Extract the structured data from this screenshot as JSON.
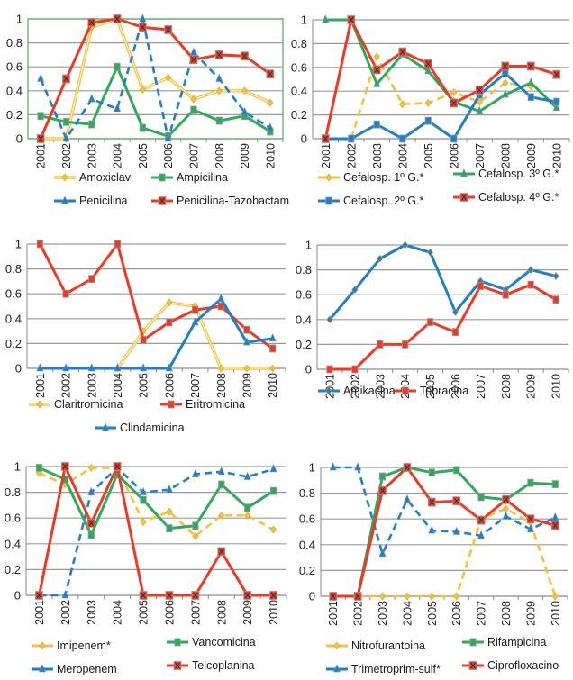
{
  "chart_data": [
    {
      "type": "line",
      "title": "",
      "xlabel": "",
      "ylabel": "",
      "x": [
        "2001",
        "2002",
        "2003",
        "2004",
        "2005",
        "2006",
        "2007",
        "2008",
        "2009",
        "2010"
      ],
      "yticks": [
        "0",
        "0.2",
        "0.4",
        "0.6",
        "0.8",
        "1"
      ],
      "ylim": [
        0,
        1
      ],
      "grid": true,
      "frame_color": "#4caf50",
      "note": "lines are drawn offset (between categories) from markers",
      "series": [
        {
          "name": "Amoxiclav",
          "color": "#f7c23a",
          "style": "double",
          "marker": "diamond",
          "values": [
            0,
            0,
            0.93,
            1.0,
            0.41,
            0.51,
            0.33,
            0.4,
            0.4,
            0.3
          ],
          "line_values": [
            0,
            0,
            0.93,
            1.0,
            0.41,
            0.51,
            0.33,
            0.4,
            0.4,
            0.3
          ]
        },
        {
          "name": "Ampicilina",
          "color": "#2eaa5a",
          "style": "solid",
          "marker": "square",
          "values": [
            0.19,
            0.14,
            0.12,
            0.6,
            0.09,
            0.02,
            0.24,
            0.15,
            0.19,
            0.06
          ]
        },
        {
          "name": "Penicilina",
          "color": "#1f7fc8",
          "style": "dashed",
          "marker": "triangle",
          "values": [
            0.5,
            0,
            0.33,
            0.25,
            1.0,
            0,
            0.72,
            0.5,
            0.22,
            0.09
          ]
        },
        {
          "name": "Penicilina-Tazobactam",
          "color": "#ee3a24",
          "style": "solid",
          "marker": "x-square",
          "values": [
            0,
            0.5,
            0.97,
            1.0,
            0.93,
            0.91,
            0.66,
            0.7,
            0.69,
            0.54
          ]
        }
      ]
    },
    {
      "type": "line",
      "title": "",
      "x": [
        "2001",
        "2002",
        "2003",
        "2004",
        "2005",
        "2006",
        "2007",
        "2008",
        "2009",
        "2010"
      ],
      "yticks": [
        "0",
        "0.2",
        "0.4",
        "0.6",
        "0.8",
        "1"
      ],
      "ylim": [
        0,
        1
      ],
      "grid": true,
      "series": [
        {
          "name": "Cefalosp. 1º G.*",
          "color": "#f7c23a",
          "style": "dashed",
          "marker": "diamond",
          "values": [
            null,
            0,
            0.69,
            0.29,
            0.3,
            0.39,
            0.31,
            0.47,
            0.44,
            null
          ]
        },
        {
          "name": "Cefalosp. 3º G.*",
          "color": "#2eaa5a",
          "style": "solid",
          "marker": "triangle",
          "values": [
            1.0,
            1.0,
            0.46,
            0.71,
            0.57,
            0.31,
            0.23,
            0.37,
            0.47,
            0.26
          ]
        },
        {
          "name": "Cefalosp. 2º G.*",
          "color": "#1f7fc8",
          "style": "solid",
          "marker": "square",
          "values": [
            0,
            0,
            0.12,
            0,
            0.15,
            0,
            0.37,
            0.55,
            0.35,
            0.31
          ]
        },
        {
          "name": "Cefalosp. 4º G.*",
          "color": "#ee3a24",
          "style": "solid",
          "marker": "x-square",
          "values": [
            0,
            1.0,
            0.58,
            0.73,
            0.63,
            0.3,
            0.41,
            0.61,
            0.61,
            0.54
          ]
        }
      ]
    },
    {
      "type": "line",
      "title": "",
      "x": [
        "2001",
        "2002",
        "2003",
        "2004",
        "2005",
        "2006",
        "2007",
        "2008",
        "2009",
        "2010"
      ],
      "yticks": [
        "0",
        "0.2",
        "0.4",
        "0.6",
        "0.8",
        "1"
      ],
      "ylim": [
        0,
        1
      ],
      "grid": true,
      "series": [
        {
          "name": "Claritromicina",
          "color": "#f7c23a",
          "style": "double",
          "marker": "diamond",
          "values": [
            null,
            null,
            null,
            0,
            0.3,
            0.53,
            0.5,
            0,
            0,
            0
          ]
        },
        {
          "name": "Eritromicina",
          "color": "#ee3a24",
          "style": "solid",
          "marker": "square",
          "values": [
            1.0,
            0.6,
            0.72,
            1.0,
            0.23,
            0.37,
            0.47,
            0.5,
            0.31,
            0.16
          ]
        },
        {
          "name": "Clindamicina",
          "color": "#1f7fc8",
          "style": "solid",
          "marker": "triangle",
          "values": [
            0,
            0,
            0,
            0,
            0,
            0,
            0.37,
            0.56,
            0.21,
            0.24
          ]
        }
      ]
    },
    {
      "type": "line",
      "title": "",
      "x": [
        "2001",
        "2002",
        "2003",
        "2004",
        "2005",
        "2006",
        "2007",
        "2008",
        "2009",
        "2010"
      ],
      "yticks": [
        "0",
        "0.2",
        "0.4",
        "0.6",
        "0.8",
        "1"
      ],
      "ylim": [
        0,
        1
      ],
      "grid": true,
      "series": [
        {
          "name": "Amikacina",
          "color": "#1f7fc8",
          "style": "solid",
          "marker": "diamond",
          "values": [
            0.4,
            0.64,
            0.89,
            1.0,
            0.94,
            0.46,
            0.71,
            0.64,
            0.8,
            0.75
          ]
        },
        {
          "name": "Tobracina",
          "color": "#ee3a24",
          "style": "solid",
          "marker": "square",
          "values": [
            0,
            0,
            0.2,
            0.2,
            0.38,
            0.3,
            0.67,
            0.6,
            0.68,
            0.56
          ]
        }
      ]
    },
    {
      "type": "line",
      "title": "",
      "x": [
        "2001",
        "2002",
        "2003",
        "2004",
        "2005",
        "2006",
        "2007",
        "2008",
        "2009",
        "2010"
      ],
      "yticks": [
        "0",
        "0.2",
        "0.4",
        "0.6",
        "0.8",
        "1"
      ],
      "ylim": [
        0,
        1
      ],
      "grid": true,
      "series": [
        {
          "name": "Imipenem*",
          "color": "#f7c23a",
          "style": "dashed",
          "marker": "diamond",
          "values": [
            0.95,
            0.86,
            0.99,
            0.99,
            0.57,
            0.65,
            0.46,
            0.62,
            0.62,
            0.51
          ]
        },
        {
          "name": "Vancomicina",
          "color": "#2eaa5a",
          "style": "solid",
          "marker": "square",
          "values": [
            0.99,
            0.9,
            0.47,
            0.94,
            0.74,
            0.52,
            0.54,
            0.86,
            0.68,
            0.81
          ]
        },
        {
          "name": "Meropenem",
          "color": "#1f7fc8",
          "style": "dashed",
          "marker": "triangle",
          "values": [
            0,
            0,
            0.8,
            0.99,
            0.8,
            0.82,
            0.94,
            0.96,
            0.92,
            0.98
          ]
        },
        {
          "name": "Telcoplanina",
          "color": "#ee3a24",
          "style": "solid",
          "marker": "x-square",
          "values": [
            0,
            1.0,
            0.56,
            1.0,
            0,
            0,
            0,
            0.34,
            0,
            0
          ]
        }
      ]
    },
    {
      "type": "line",
      "title": "",
      "x": [
        "2001",
        "2002",
        "2003",
        "2004",
        "2005",
        "2006",
        "2007",
        "2008",
        "2009",
        "2010"
      ],
      "yticks": [
        "0",
        "0.2",
        "0.4",
        "0.6",
        "0.8",
        "1"
      ],
      "ylim": [
        0,
        1
      ],
      "grid": true,
      "series": [
        {
          "name": "Nitrofurantoina",
          "color": "#f7c23a",
          "style": "dashed",
          "marker": "diamond",
          "values": [
            null,
            0,
            0,
            0,
            0,
            0,
            0.6,
            0.68,
            0.57,
            0
          ]
        },
        {
          "name": "Rifampicina",
          "color": "#2eaa5a",
          "style": "solid",
          "marker": "square",
          "values": [
            null,
            0,
            0.93,
            1.0,
            0.96,
            0.98,
            0.77,
            0.75,
            0.88,
            0.87
          ]
        },
        {
          "name": "Trimetroprim-sulf*",
          "color": "#1f7fc8",
          "style": "dashed",
          "marker": "triangle",
          "values": [
            1.0,
            1.0,
            0.33,
            0.75,
            0.51,
            0.5,
            0.47,
            0.62,
            0.52,
            0.61
          ]
        },
        {
          "name": "Ciprofloxacino",
          "color": "#ee3a24",
          "style": "solid",
          "marker": "x-square",
          "values": [
            0,
            0,
            0.82,
            1.0,
            0.73,
            0.74,
            0.59,
            0.75,
            0.6,
            0.55
          ]
        }
      ]
    }
  ]
}
